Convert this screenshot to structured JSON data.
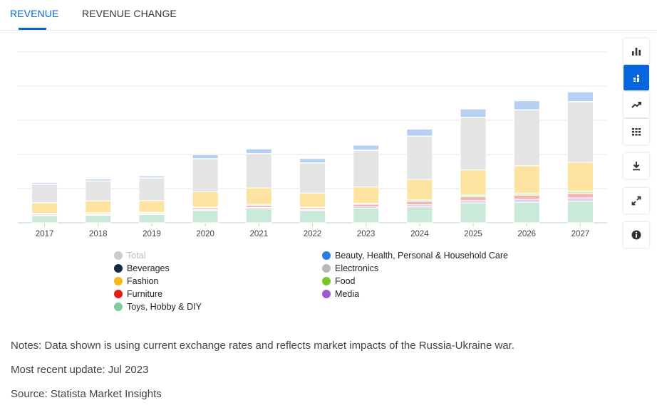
{
  "tabs": [
    {
      "label": "REVENUE",
      "active": true
    },
    {
      "label": "REVENUE CHANGE",
      "active": false
    }
  ],
  "toolbar": [
    {
      "icon": "bar-chart-icon",
      "selected": false
    },
    {
      "icon": "stacked-bar-icon",
      "selected": true
    },
    {
      "icon": "trend-line-icon",
      "selected": false
    },
    {
      "icon": "table-grid-icon",
      "selected": false
    },
    {
      "icon": "download-icon",
      "selected": false
    },
    {
      "icon": "fullscreen-icon",
      "selected": false
    },
    {
      "icon": "info-icon",
      "selected": false
    }
  ],
  "chart_data": {
    "type": "bar",
    "stacked": true,
    "categories": [
      "2017",
      "2018",
      "2019",
      "2020",
      "2021",
      "2022",
      "2023",
      "2024",
      "2025",
      "2026",
      "2027"
    ],
    "ylim": [
      0,
      5
    ],
    "grid": true,
    "y_tick_labels_shown": false,
    "series": [
      {
        "name": "Toys, Hobby & DIY",
        "color": "#c9ead8",
        "values": [
          0.21,
          0.22,
          0.24,
          0.36,
          0.41,
          0.36,
          0.43,
          0.47,
          0.58,
          0.6,
          0.63
        ]
      },
      {
        "name": "Media",
        "color": "#e6cdee",
        "values": [
          0.02,
          0.02,
          0.02,
          0.03,
          0.04,
          0.03,
          0.04,
          0.06,
          0.07,
          0.09,
          0.1
        ]
      },
      {
        "name": "Furniture",
        "color": "#f2b6b0",
        "values": [
          0.03,
          0.03,
          0.03,
          0.05,
          0.06,
          0.05,
          0.07,
          0.1,
          0.11,
          0.12,
          0.13
        ]
      },
      {
        "name": "Food",
        "color": "#d8efbf",
        "values": [
          0.02,
          0.02,
          0.02,
          0.02,
          0.03,
          0.02,
          0.03,
          0.04,
          0.05,
          0.06,
          0.07
        ]
      },
      {
        "name": "Fashion",
        "color": "#fde3a0",
        "values": [
          0.3,
          0.35,
          0.34,
          0.45,
          0.48,
          0.41,
          0.48,
          0.6,
          0.74,
          0.8,
          0.84
        ]
      },
      {
        "name": "Electronics",
        "color": "#e4e4e4",
        "values": [
          0.55,
          0.58,
          0.66,
          0.96,
          1.0,
          0.88,
          1.07,
          1.26,
          1.53,
          1.63,
          1.77
        ]
      },
      {
        "name": "Beverages",
        "color": "#f0f0f0",
        "values": [
          0.01,
          0.01,
          0.01,
          0.01,
          0.01,
          0.01,
          0.01,
          0.01,
          0.01,
          0.01,
          0.01
        ]
      },
      {
        "name": "Beauty, Health, Personal & Household Care",
        "color": "#b6d0f4",
        "values": [
          0.04,
          0.05,
          0.05,
          0.11,
          0.13,
          0.12,
          0.14,
          0.2,
          0.24,
          0.26,
          0.28
        ]
      }
    ],
    "legend_placement": "bottom",
    "legend": [
      {
        "label": "Total",
        "color": "#cccccc",
        "muted": true
      },
      {
        "label": "Beauty, Health, Personal & Household Care",
        "color": "#2b7ce0"
      },
      {
        "label": "Beverages",
        "color": "#172840"
      },
      {
        "label": "Electronics",
        "color": "#b7b7b7"
      },
      {
        "label": "Fashion",
        "color": "#f8b716"
      },
      {
        "label": "Food",
        "color": "#7cc228"
      },
      {
        "label": "Furniture",
        "color": "#e01e12"
      },
      {
        "label": "Media",
        "color": "#9b5bcc"
      },
      {
        "label": "Toys, Hobby & DIY",
        "color": "#7ccc9c"
      }
    ]
  },
  "notes": {
    "note": "Notes: Data shown is using current exchange rates and reflects market impacts of the Russia-Ukraine war.",
    "update": "Most recent update: Jul 2023",
    "source": "Source: Statista Market Insights"
  }
}
